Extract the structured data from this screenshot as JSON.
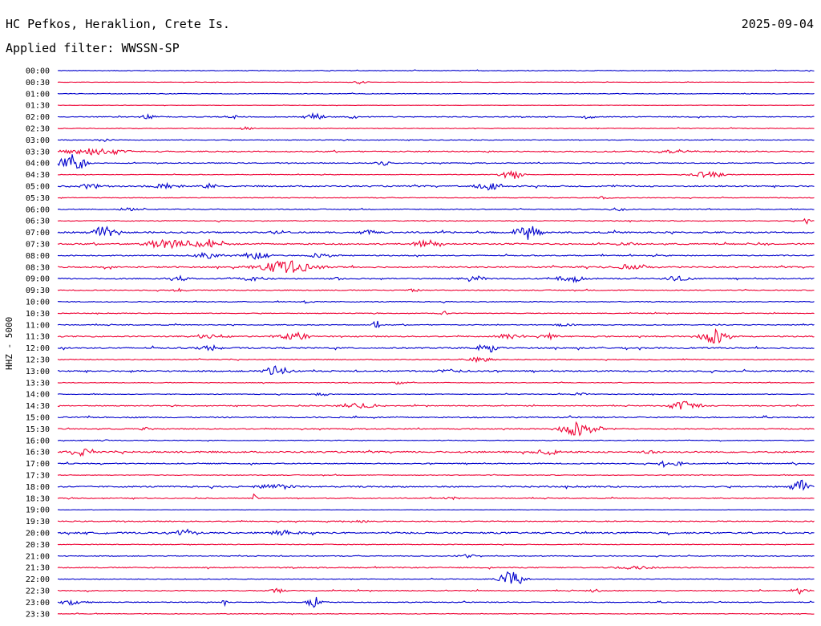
{
  "header": {
    "station": "HC Pefkos, Heraklion, Crete Is.",
    "filter": "Applied filter: WWSSN-SP",
    "date": "2025-09-04"
  },
  "chart_data": {
    "type": "line",
    "title": "HC Pefkos, Heraklion, Crete Is.",
    "subtitle": "Applied filter: WWSSN-SP",
    "ylabel": "HHZ - 5000",
    "date": "2025-09-04",
    "row_labels": [
      "00:00",
      "00:30",
      "01:00",
      "01:30",
      "02:00",
      "02:30",
      "03:00",
      "03:30",
      "04:00",
      "04:30",
      "05:00",
      "05:30",
      "06:00",
      "06:30",
      "07:00",
      "07:30",
      "08:00",
      "08:30",
      "09:00",
      "09:30",
      "10:00",
      "10:30",
      "11:00",
      "11:30",
      "12:00",
      "12:30",
      "13:00",
      "13:30",
      "14:00",
      "14:30",
      "15:00",
      "15:30",
      "16:00",
      "16:30",
      "17:00",
      "17:30",
      "18:00",
      "18:30",
      "19:00",
      "19:30",
      "20:00",
      "20:30",
      "21:00",
      "21:30",
      "22:00",
      "22:30",
      "23:00",
      "23:30"
    ],
    "series_colors": [
      "#0000cc",
      "#ee0033"
    ],
    "noise_level": [
      0.4,
      0.2,
      0.4,
      0.2,
      0.5,
      0.4,
      0.4,
      0.7,
      0.5,
      0.3,
      0.8,
      0.4,
      0.5,
      0.5,
      0.9,
      0.8,
      0.6,
      0.8,
      0.7,
      0.5,
      0.5,
      0.4,
      0.5,
      0.7,
      0.8,
      0.5,
      0.8,
      0.4,
      0.4,
      0.5,
      0.7,
      0.6,
      0.4,
      0.9,
      0.6,
      0.4,
      0.8,
      0.5,
      0.2,
      0.6,
      0.9,
      0.4,
      0.5,
      0.6,
      0.4,
      0.5,
      0.5,
      0.4
    ],
    "events": [
      [],
      [
        {
          "t": 0.4,
          "amp": 2,
          "dur": 0.01
        }
      ],
      [],
      [],
      [
        {
          "t": 0.12,
          "amp": 3,
          "dur": 0.01
        },
        {
          "t": 0.23,
          "amp": 3,
          "dur": 0.01
        },
        {
          "t": 0.34,
          "amp": 4,
          "dur": 0.015
        },
        {
          "t": 0.39,
          "amp": 3,
          "dur": 0.005
        },
        {
          "t": 0.7,
          "amp": 2,
          "dur": 0.01
        }
      ],
      [
        {
          "t": 0.25,
          "amp": 2,
          "dur": 0.01
        }
      ],
      [
        {
          "t": 0.06,
          "amp": 2,
          "dur": 0.01
        }
      ],
      [
        {
          "t": 0.05,
          "amp": 4,
          "dur": 0.04
        },
        {
          "t": 0.82,
          "amp": 2,
          "dur": 0.03
        }
      ],
      [
        {
          "t": 0.02,
          "amp": 14,
          "dur": 0.015
        },
        {
          "t": 0.43,
          "amp": 3,
          "dur": 0.01
        }
      ],
      [
        {
          "t": 0.6,
          "amp": 5,
          "dur": 0.015
        },
        {
          "t": 0.86,
          "amp": 4,
          "dur": 0.02
        }
      ],
      [
        {
          "t": 0.04,
          "amp": 3,
          "dur": 0.02
        },
        {
          "t": 0.14,
          "amp": 3,
          "dur": 0.02
        },
        {
          "t": 0.2,
          "amp": 3,
          "dur": 0.01
        },
        {
          "t": 0.57,
          "amp": 4,
          "dur": 0.02
        }
      ],
      [
        {
          "t": 0.72,
          "amp": 2,
          "dur": 0.01
        }
      ],
      [
        {
          "t": 0.1,
          "amp": 2,
          "dur": 0.02
        },
        {
          "t": 0.74,
          "amp": 2,
          "dur": 0.01
        }
      ],
      [
        {
          "t": 0.99,
          "amp": 4,
          "dur": 0.005
        }
      ],
      [
        {
          "t": 0.06,
          "amp": 7,
          "dur": 0.015
        },
        {
          "t": 0.29,
          "amp": 3,
          "dur": 0.01
        },
        {
          "t": 0.41,
          "amp": 3,
          "dur": 0.01
        },
        {
          "t": 0.62,
          "amp": 10,
          "dur": 0.015
        }
      ],
      [
        {
          "t": 0.15,
          "amp": 7,
          "dur": 0.03
        },
        {
          "t": 0.2,
          "amp": 6,
          "dur": 0.02
        },
        {
          "t": 0.49,
          "amp": 4,
          "dur": 0.02
        },
        {
          "t": 0.75,
          "amp": 2,
          "dur": 0.01
        },
        {
          "t": 0.93,
          "amp": 2,
          "dur": 0.01
        }
      ],
      [
        {
          "t": 0.2,
          "amp": 4,
          "dur": 0.02
        },
        {
          "t": 0.26,
          "amp": 5,
          "dur": 0.02
        },
        {
          "t": 0.35,
          "amp": 3,
          "dur": 0.02
        }
      ],
      [
        {
          "t": 0.3,
          "amp": 8,
          "dur": 0.035
        },
        {
          "t": 0.76,
          "amp": 3,
          "dur": 0.03
        }
      ],
      [
        {
          "t": 0.16,
          "amp": 3,
          "dur": 0.015
        },
        {
          "t": 0.26,
          "amp": 3,
          "dur": 0.02
        },
        {
          "t": 0.37,
          "amp": 3,
          "dur": 0.01
        },
        {
          "t": 0.55,
          "amp": 3,
          "dur": 0.02
        },
        {
          "t": 0.68,
          "amp": 4,
          "dur": 0.02
        },
        {
          "t": 0.82,
          "amp": 3,
          "dur": 0.02
        }
      ],
      [
        {
          "t": 0.16,
          "amp": 2,
          "dur": 0.01
        },
        {
          "t": 0.47,
          "amp": 2,
          "dur": 0.01
        }
      ],
      [
        {
          "t": 0.33,
          "amp": 2,
          "dur": 0.01
        }
      ],
      [
        {
          "t": 0.51,
          "amp": 3,
          "dur": 0.005
        }
      ],
      [
        {
          "t": 0.42,
          "amp": 6,
          "dur": 0.005
        },
        {
          "t": 0.67,
          "amp": 3,
          "dur": 0.01
        }
      ],
      [
        {
          "t": 0.2,
          "amp": 3,
          "dur": 0.02
        },
        {
          "t": 0.31,
          "amp": 5,
          "dur": 0.02
        },
        {
          "t": 0.6,
          "amp": 4,
          "dur": 0.02
        },
        {
          "t": 0.65,
          "amp": 5,
          "dur": 0.01
        },
        {
          "t": 0.87,
          "amp": 9,
          "dur": 0.02
        }
      ],
      [
        {
          "t": 0.2,
          "amp": 4,
          "dur": 0.015
        },
        {
          "t": 0.57,
          "amp": 5,
          "dur": 0.02
        }
      ],
      [
        {
          "t": 0.56,
          "amp": 3,
          "dur": 0.02
        }
      ],
      [
        {
          "t": 0.29,
          "amp": 7,
          "dur": 0.015
        },
        {
          "t": 0.52,
          "amp": 3,
          "dur": 0.02
        }
      ],
      [
        {
          "t": 0.45,
          "amp": 2,
          "dur": 0.01
        }
      ],
      [
        {
          "t": 0.35,
          "amp": 2,
          "dur": 0.01
        },
        {
          "t": 0.69,
          "amp": 2,
          "dur": 0.01
        }
      ],
      [
        {
          "t": 0.4,
          "amp": 4,
          "dur": 0.025
        },
        {
          "t": 0.83,
          "amp": 6,
          "dur": 0.02
        }
      ],
      [],
      [
        {
          "t": 0.69,
          "amp": 9,
          "dur": 0.025
        },
        {
          "t": 0.11,
          "amp": 2,
          "dur": 0.01
        }
      ],
      [
        {
          "t": 0.06,
          "amp": 2,
          "dur": 0.005
        }
      ],
      [
        {
          "t": 0.03,
          "amp": 5,
          "dur": 0.015
        },
        {
          "t": 0.65,
          "amp": 3,
          "dur": 0.02
        },
        {
          "t": 0.78,
          "amp": 3,
          "dur": 0.01
        }
      ],
      [
        {
          "t": 0.8,
          "amp": 5,
          "dur": 0.005
        },
        {
          "t": 0.82,
          "amp": 4,
          "dur": 0.005
        }
      ],
      [],
      [
        {
          "t": 0.29,
          "amp": 3,
          "dur": 0.03
        },
        {
          "t": 0.98,
          "amp": 9,
          "dur": 0.01
        }
      ],
      [
        {
          "t": 0.26,
          "amp": 6,
          "dur": 0.003
        },
        {
          "t": 0.52,
          "amp": 2,
          "dur": 0.01
        }
      ],
      [],
      [
        {
          "t": 0.4,
          "amp": 2,
          "dur": 0.01
        }
      ],
      [
        {
          "t": 0.17,
          "amp": 4,
          "dur": 0.015
        },
        {
          "t": 0.3,
          "amp": 3,
          "dur": 0.02
        }
      ],
      [],
      [
        {
          "t": 0.54,
          "amp": 3,
          "dur": 0.01
        }
      ],
      [
        {
          "t": 0.76,
          "amp": 2,
          "dur": 0.03
        }
      ],
      [
        {
          "t": 0.6,
          "amp": 11,
          "dur": 0.015
        }
      ],
      [
        {
          "t": 0.29,
          "amp": 3,
          "dur": 0.01
        },
        {
          "t": 0.71,
          "amp": 2,
          "dur": 0.01
        },
        {
          "t": 0.98,
          "amp": 4,
          "dur": 0.01
        }
      ],
      [
        {
          "t": 0.02,
          "amp": 3,
          "dur": 0.02
        },
        {
          "t": 0.34,
          "amp": 7,
          "dur": 0.01
        },
        {
          "t": 0.22,
          "amp": 5,
          "dur": 0.003
        }
      ],
      []
    ]
  }
}
